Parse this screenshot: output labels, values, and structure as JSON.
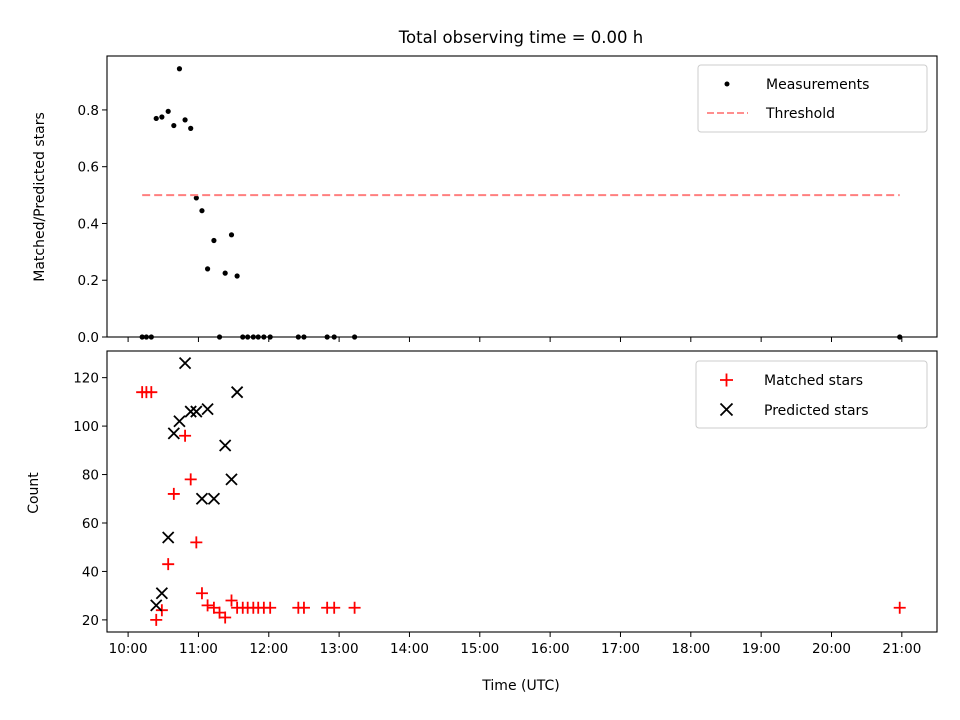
{
  "figure": {
    "title": "Total observing time = 0.00 h"
  },
  "chart_data": [
    {
      "type": "scatter",
      "ylabel": "Matched/Predicted stars",
      "xlim": [
        9.7,
        21.5
      ],
      "ylim": [
        0,
        0.99
      ],
      "yticks": [
        0.0,
        0.2,
        0.4,
        0.6,
        0.8
      ],
      "ytick_labels": [
        "0.0",
        "0.2",
        "0.4",
        "0.6",
        "0.8"
      ],
      "legend_position": "top-right",
      "series": [
        {
          "name": "Measurements",
          "marker": "dot",
          "color": "#000000",
          "points": [
            [
              10.2,
              0.0
            ],
            [
              10.26,
              0.0
            ],
            [
              10.33,
              0.0
            ],
            [
              10.4,
              0.77
            ],
            [
              10.48,
              0.775
            ],
            [
              10.57,
              0.795
            ],
            [
              10.65,
              0.745
            ],
            [
              10.73,
              0.945
            ],
            [
              10.81,
              0.765
            ],
            [
              10.89,
              0.735
            ],
            [
              10.97,
              0.49
            ],
            [
              11.05,
              0.445
            ],
            [
              11.13,
              0.24
            ],
            [
              11.22,
              0.34
            ],
            [
              11.3,
              0.0
            ],
            [
              11.38,
              0.225
            ],
            [
              11.47,
              0.36
            ],
            [
              11.55,
              0.215
            ],
            [
              11.63,
              0.0
            ],
            [
              11.7,
              0.0
            ],
            [
              11.78,
              0.0
            ],
            [
              11.85,
              0.0
            ],
            [
              11.93,
              0.0
            ],
            [
              12.02,
              0.0
            ],
            [
              12.42,
              0.0
            ],
            [
              12.5,
              0.0
            ],
            [
              12.83,
              0.0
            ],
            [
              12.93,
              0.0
            ],
            [
              13.22,
              0.0
            ],
            [
              20.97,
              0.0
            ]
          ]
        },
        {
          "name": "Threshold",
          "marker": "dashed-line",
          "color": "#ff7f7f",
          "points": [
            [
              10.2,
              0.5
            ],
            [
              20.97,
              0.5
            ]
          ]
        }
      ]
    },
    {
      "type": "scatter",
      "xlabel": "Time (UTC)",
      "ylabel": "Count",
      "xlim": [
        9.7,
        21.5
      ],
      "ylim": [
        15,
        131
      ],
      "xticks": [
        10,
        11,
        12,
        13,
        14,
        15,
        16,
        17,
        18,
        19,
        20,
        21
      ],
      "xtick_labels": [
        "10:00",
        "11:00",
        "12:00",
        "13:00",
        "14:00",
        "15:00",
        "16:00",
        "17:00",
        "18:00",
        "19:00",
        "20:00",
        "21:00"
      ],
      "yticks": [
        20,
        40,
        60,
        80,
        100,
        120
      ],
      "ytick_labels": [
        "20",
        "40",
        "60",
        "80",
        "100",
        "120"
      ],
      "legend_position": "top-right",
      "series": [
        {
          "name": "Matched stars",
          "marker": "plus",
          "color": "#ff0000",
          "points": [
            [
              10.2,
              114
            ],
            [
              10.26,
              114
            ],
            [
              10.33,
              114
            ],
            [
              10.4,
              20
            ],
            [
              10.48,
              24
            ],
            [
              10.57,
              43
            ],
            [
              10.65,
              72
            ],
            [
              10.81,
              96
            ],
            [
              10.89,
              78
            ],
            [
              10.97,
              52
            ],
            [
              11.05,
              31
            ],
            [
              11.13,
              26
            ],
            [
              11.22,
              25
            ],
            [
              11.3,
              23
            ],
            [
              11.38,
              21
            ],
            [
              11.47,
              28
            ],
            [
              11.55,
              25
            ],
            [
              11.63,
              25
            ],
            [
              11.7,
              25
            ],
            [
              11.78,
              25
            ],
            [
              11.85,
              25
            ],
            [
              11.93,
              25
            ],
            [
              12.02,
              25
            ],
            [
              12.42,
              25
            ],
            [
              12.5,
              25
            ],
            [
              12.83,
              25
            ],
            [
              12.93,
              25
            ],
            [
              13.22,
              25
            ],
            [
              20.97,
              25
            ]
          ]
        },
        {
          "name": "Predicted stars",
          "marker": "x",
          "color": "#000000",
          "points": [
            [
              10.4,
              26
            ],
            [
              10.48,
              31
            ],
            [
              10.57,
              54
            ],
            [
              10.65,
              97
            ],
            [
              10.73,
              102
            ],
            [
              10.81,
              126
            ],
            [
              10.89,
              106
            ],
            [
              10.97,
              106
            ],
            [
              11.05,
              70
            ],
            [
              11.13,
              107
            ],
            [
              11.22,
              70
            ],
            [
              11.38,
              92
            ],
            [
              11.47,
              78
            ],
            [
              11.55,
              114
            ]
          ]
        }
      ]
    }
  ]
}
